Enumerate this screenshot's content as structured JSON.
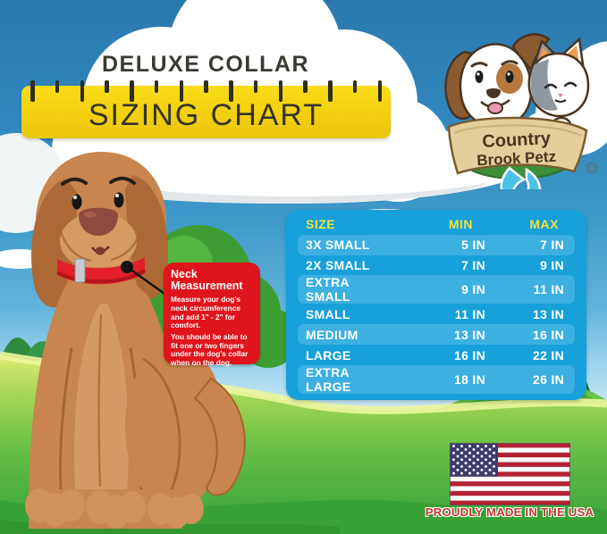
{
  "title": "DELUXE COLLAR",
  "banner": {
    "label": "SIZING CHART"
  },
  "logo": {
    "line1": "Country",
    "line2": "Brook Petz",
    "registered": "R"
  },
  "callout": {
    "title": "Neck Measurement",
    "body1": "Measure your dog's neck circumference and add 1\" - 2\" for comfort.",
    "body2": "You should be able to fit one or two fingers under the dog's collar when on the dog."
  },
  "table": {
    "headers": [
      "SIZE",
      "MIN",
      "MAX"
    ],
    "rows": [
      [
        "3X SMALL",
        "5 IN",
        "7 IN"
      ],
      [
        "2X SMALL",
        "7 IN",
        "9 IN"
      ],
      [
        "EXTRA SMALL",
        "9 IN",
        "11 IN"
      ],
      [
        "SMALL",
        "11 IN",
        "13 IN"
      ],
      [
        "MEDIUM",
        "13 IN",
        "16 IN"
      ],
      [
        "LARGE",
        "16 IN",
        "22 IN"
      ],
      [
        "EXTRA LARGE",
        "18 IN",
        "26 IN"
      ]
    ]
  },
  "footer": {
    "caption": "PROUDLY MADE IN THE USA"
  },
  "colors": {
    "sky-top": "#2a79ae",
    "ruler-yellow": "#f2cf0e",
    "table-blue": "#17a0d9",
    "stripe-blue": "#3cb0e1",
    "header-yellow": "#efe33d",
    "callout-red": "#e0141d",
    "usa-red": "#c23b30",
    "collar-red": "#e3202a",
    "grass-green": "#58b53f",
    "dog-brown": "#c8854e"
  },
  "chart_data": {
    "type": "table",
    "title": "DELUXE COLLAR SIZING CHART",
    "columns": [
      "SIZE",
      "MIN",
      "MAX"
    ],
    "units": "IN",
    "rows": [
      [
        "3X SMALL",
        "5 IN",
        "7 IN"
      ],
      [
        "2X SMALL",
        "7 IN",
        "9 IN"
      ],
      [
        "EXTRA SMALL",
        "9 IN",
        "11 IN"
      ],
      [
        "SMALL",
        "11 IN",
        "13 IN"
      ],
      [
        "MEDIUM",
        "13 IN",
        "16 IN"
      ],
      [
        "LARGE",
        "16 IN",
        "22 IN"
      ],
      [
        "EXTRA LARGE",
        "18 IN",
        "26 IN"
      ]
    ]
  }
}
